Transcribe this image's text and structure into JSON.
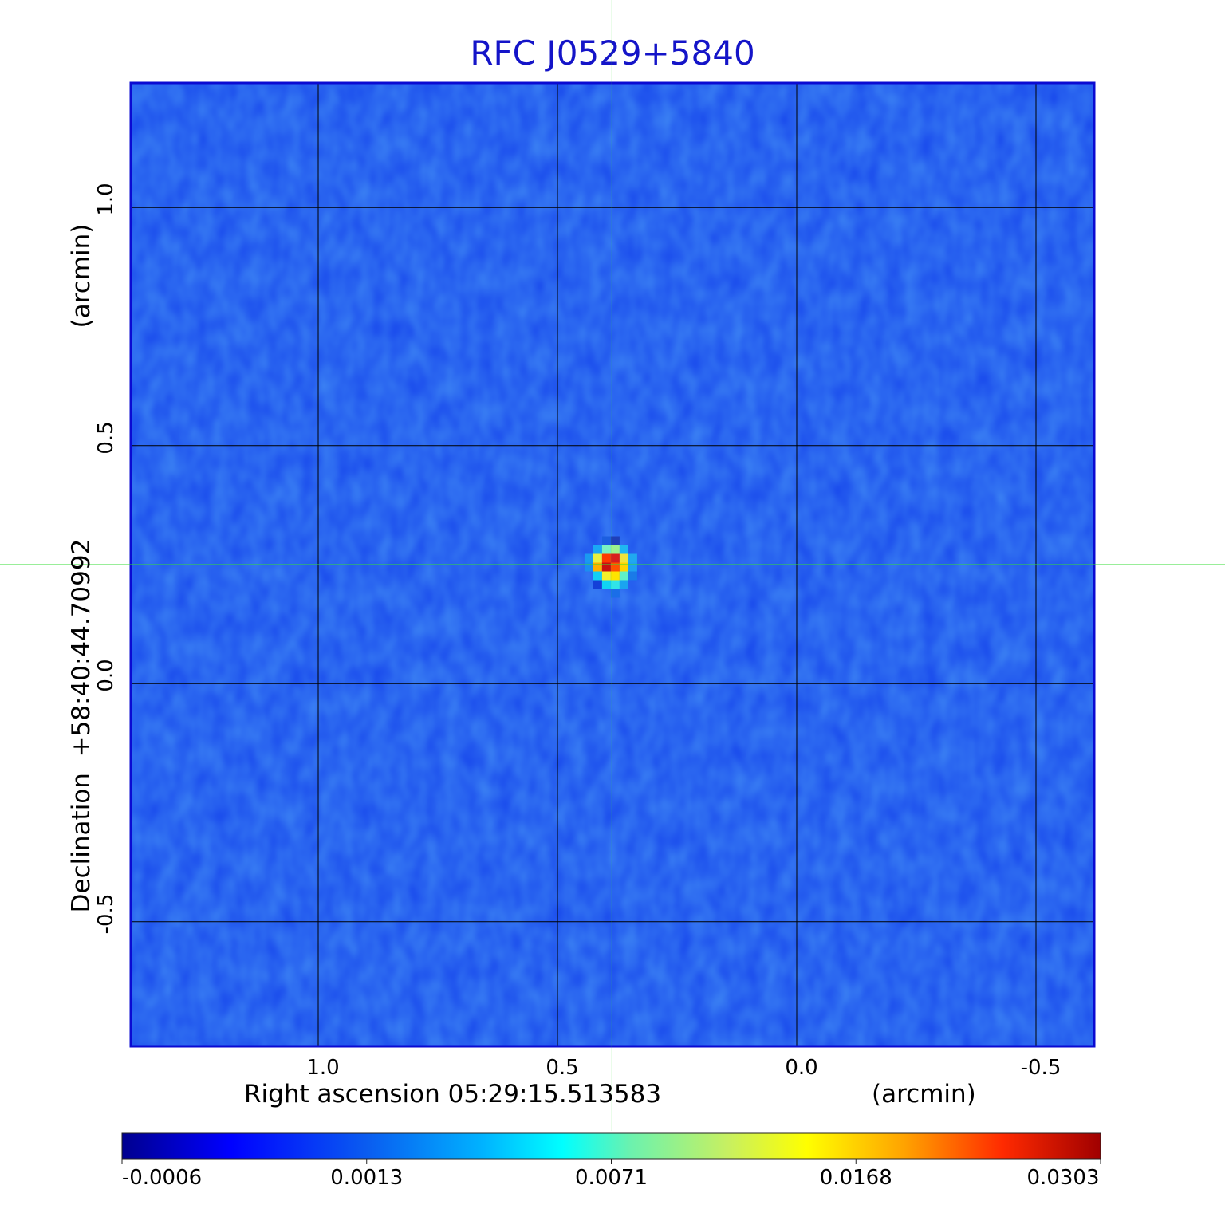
{
  "chart_data": {
    "type": "heatmap",
    "title": "RFC J0529+5840",
    "xlabel": "Right ascension  05:29:15.513583",
    "xunit": "(arcmin)",
    "ylabel": "Declination  +58:40:44.70992",
    "yunit": "(arcmin)",
    "x_range": [
      1.39,
      -0.62
    ],
    "y_range": [
      -0.76,
      1.26
    ],
    "x_ticks": [
      {
        "value": 1.0,
        "label": "1.0"
      },
      {
        "value": 0.5,
        "label": "0.5"
      },
      {
        "value": 0.0,
        "label": "0.0"
      },
      {
        "value": -0.5,
        "label": "-0.5"
      }
    ],
    "y_ticks": [
      {
        "value": 1.0,
        "label": "1.0"
      },
      {
        "value": 0.5,
        "label": "0.5"
      },
      {
        "value": 0.0,
        "label": "0.0"
      },
      {
        "value": -0.5,
        "label": "-0.5"
      }
    ],
    "grid": true,
    "crosshair": {
      "x": 0.386,
      "y": 0.25
    },
    "source_peak": {
      "x": 0.386,
      "y": 0.25,
      "value": 0.0303
    },
    "colormap": "jet",
    "colorbar": {
      "orientation": "horizontal",
      "ticks": [
        "-0.0006",
        "0.0013",
        "0.0071",
        "0.0168",
        "0.0303"
      ]
    },
    "colors": {
      "title": "#1414c8",
      "frame": "#0a0ad2",
      "grid": "#000000",
      "crosshair": "#33dd33"
    }
  }
}
